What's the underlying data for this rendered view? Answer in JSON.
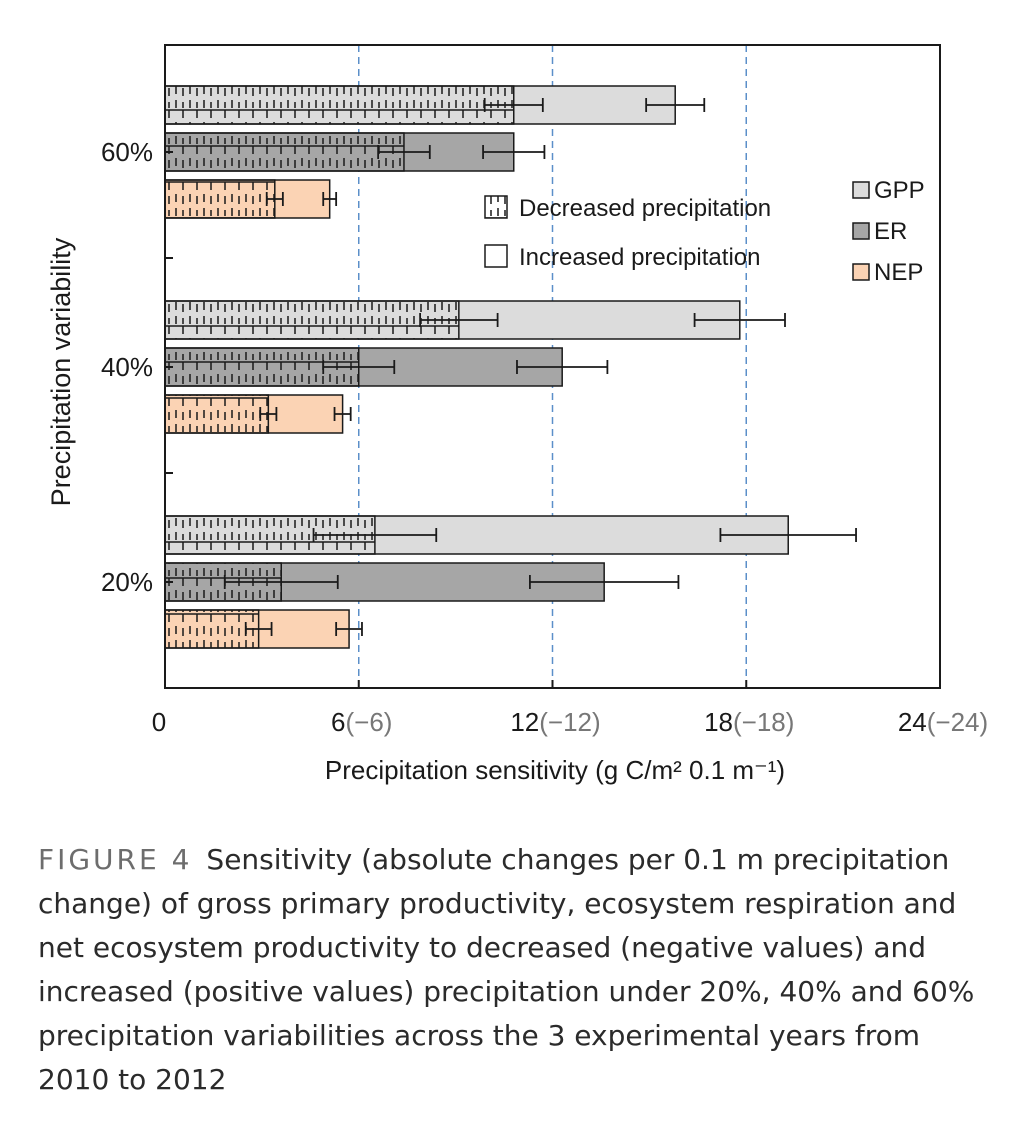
{
  "chart_data": {
    "type": "bar",
    "orientation": "horizontal",
    "xlabel": "Precipitation sensitivity (g C/m² 0.1 m⁻¹)",
    "ylabel": "Precipitation variability",
    "xlim": [
      0,
      24
    ],
    "x_ticks": [
      {
        "value": 0,
        "label": "0",
        "neg_label": ""
      },
      {
        "value": 6,
        "label": "6",
        "neg_label": "(−6)"
      },
      {
        "value": 12,
        "label": "12",
        "neg_label": "(−12)"
      },
      {
        "value": 18,
        "label": "18",
        "neg_label": "(−18)"
      },
      {
        "value": 24,
        "label": "24",
        "neg_label": "(−24)"
      }
    ],
    "grid": "dashed vertical lines at 6, 12, 18",
    "categories": [
      "60%",
      "40%",
      "20%"
    ],
    "series": [
      {
        "name": "GPP",
        "color": "#dcdcdc",
        "increased": [
          15.8,
          17.8,
          19.3
        ],
        "increased_err": [
          0.9,
          1.4,
          2.1
        ],
        "decreased": [
          10.8,
          9.1,
          6.5
        ],
        "decreased_err": [
          0.9,
          1.2,
          1.9
        ]
      },
      {
        "name": "ER",
        "color": "#a6a6a6",
        "increased": [
          10.8,
          12.3,
          13.6
        ],
        "increased_err": [
          0.95,
          1.4,
          2.3
        ],
        "decreased": [
          7.4,
          6.0,
          3.6
        ],
        "decreased_err": [
          0.8,
          1.1,
          1.75
        ]
      },
      {
        "name": "NEP",
        "color": "#fbd3b4",
        "increased": [
          5.1,
          5.5,
          5.7
        ],
        "increased_err": [
          0.2,
          0.25,
          0.4
        ],
        "decreased": [
          3.4,
          3.2,
          2.9
        ],
        "decreased_err": [
          0.25,
          0.25,
          0.4
        ]
      }
    ],
    "pattern_legend": [
      {
        "label": "Decreased precipitation",
        "pattern": "dotted-hatch"
      },
      {
        "label": "Increased precipitation",
        "pattern": "none"
      }
    ]
  },
  "caption": {
    "label": "FIGURE 4",
    "text": "Sensitivity (absolute changes per 0.1 m precipitation change) of gross primary productivity, ecosystem respiration and net ecosystem productivity to decreased (negative values) and increased (positive values) precipitation under 20%, 40% and 60% precipitation variabilities across the 3 experimental years from 2010 to 2012"
  }
}
